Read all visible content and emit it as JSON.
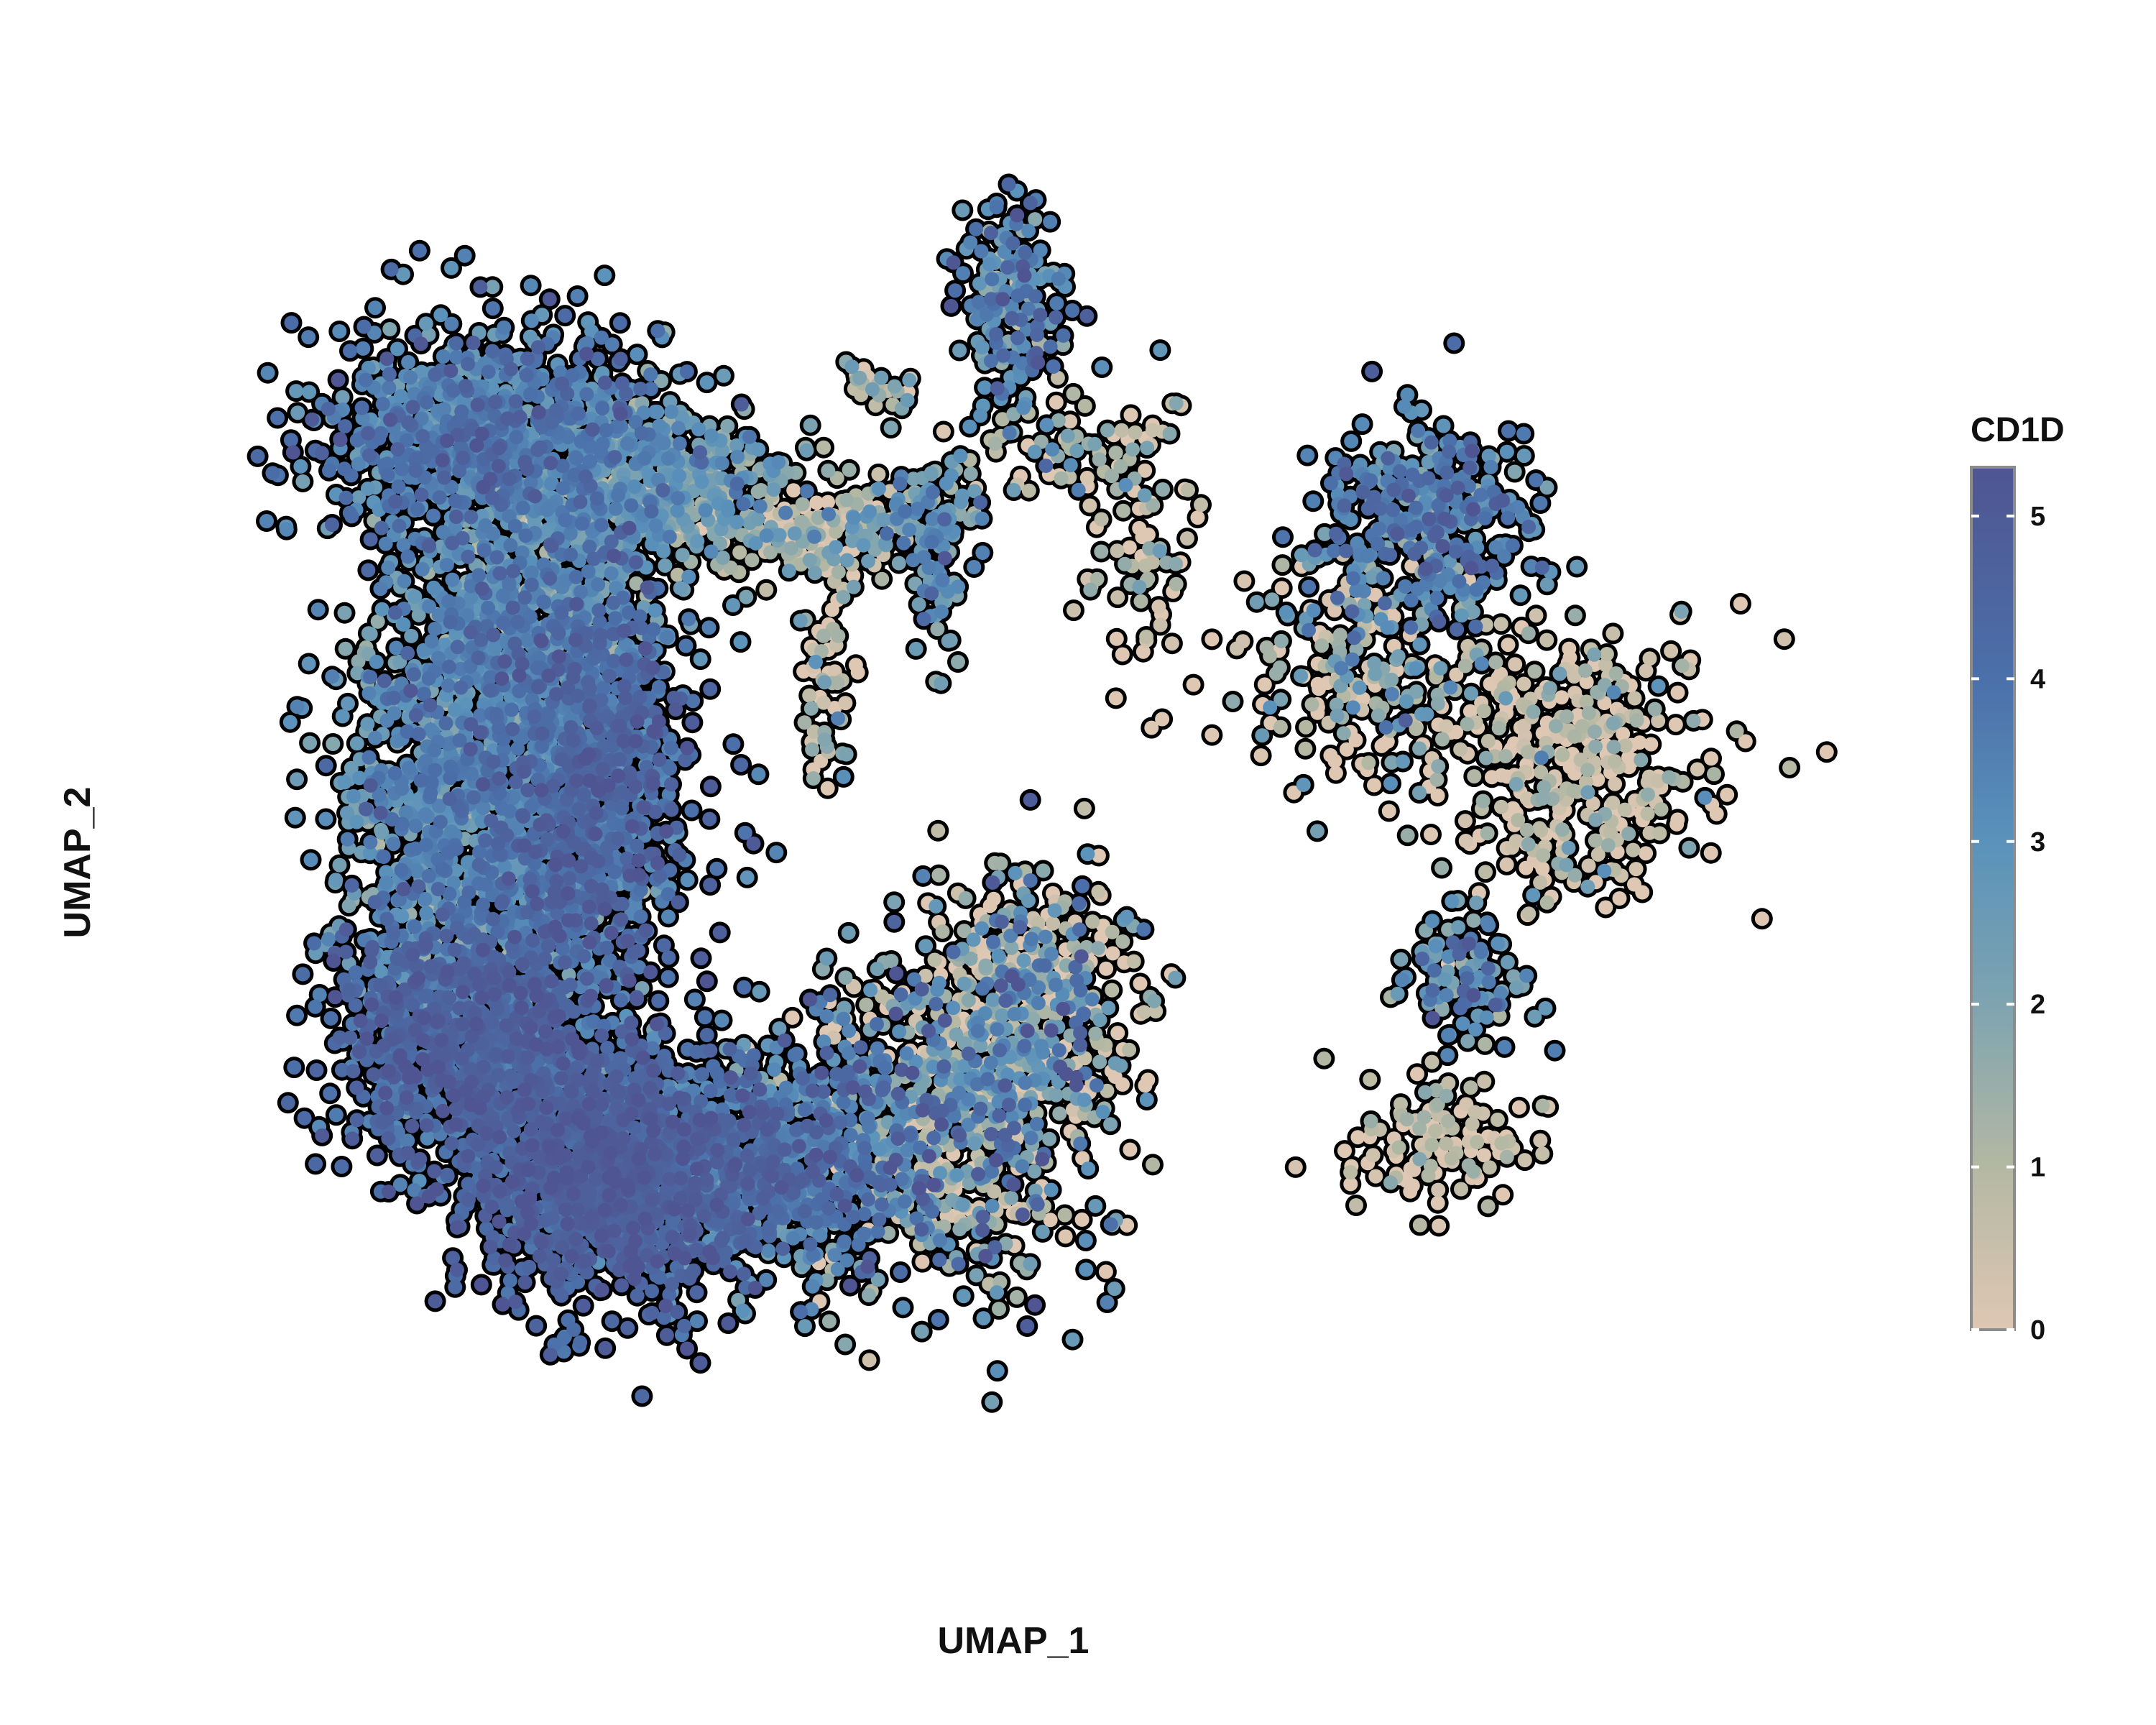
{
  "chart_data": {
    "type": "scatter",
    "title": "",
    "xlabel": "UMAP_1",
    "ylabel": "UMAP_2",
    "xlim": [
      -10.5,
      15.5
    ],
    "ylim": [
      -10.8,
      10.0
    ],
    "grid": false,
    "point_fill_low": "#dec7b3",
    "point_outline": "#000000",
    "colorscale": {
      "title": "CD1D",
      "min": 0,
      "max": 5.3,
      "ticks": [
        0,
        1,
        2,
        3,
        4,
        5
      ],
      "tick_labels": [
        "0",
        "1",
        "2",
        "3",
        "4",
        "5"
      ],
      "stops": [
        {
          "value": 0,
          "color": "#dec7b3"
        },
        {
          "value": 1,
          "color": "#b4b8a3"
        },
        {
          "value": 2,
          "color": "#7ea4b0"
        },
        {
          "value": 3,
          "color": "#5a92bb"
        },
        {
          "value": 4,
          "color": "#4b70aa"
        },
        {
          "value": 5.3,
          "color": "#4f5592"
        }
      ]
    },
    "clusters": [
      {
        "x": -6.2,
        "y": 6.2,
        "sd": [
          1.4,
          0.9
        ],
        "n": 900,
        "expr_mean": 3.4,
        "expr_sd": 0.8
      },
      {
        "x": -3.6,
        "y": 5.3,
        "sd": [
          1.3,
          0.7
        ],
        "n": 500,
        "expr_mean": 2.2,
        "expr_sd": 0.9
      },
      {
        "x": -5.5,
        "y": 3.3,
        "sd": [
          1.1,
          1.0
        ],
        "n": 600,
        "expr_mean": 2.8,
        "expr_sd": 0.8
      },
      {
        "x": -6.8,
        "y": 0.2,
        "sd": [
          1.0,
          1.7
        ],
        "n": 1000,
        "expr_mean": 3.0,
        "expr_sd": 0.8
      },
      {
        "x": -4.6,
        "y": 0.5,
        "sd": [
          0.9,
          1.6
        ],
        "n": 900,
        "expr_mean": 4.0,
        "expr_sd": 0.7
      },
      {
        "x": -6.6,
        "y": -3.4,
        "sd": [
          1.1,
          1.0
        ],
        "n": 900,
        "expr_mean": 4.2,
        "expr_sd": 0.6
      },
      {
        "x": -4.5,
        "y": -5.6,
        "sd": [
          1.2,
          1.0
        ],
        "n": 1100,
        "expr_mean": 4.5,
        "expr_sd": 0.5
      },
      {
        "x": -1.8,
        "y": -5.4,
        "sd": [
          1.4,
          0.9
        ],
        "n": 800,
        "expr_mean": 3.6,
        "expr_sd": 0.8
      },
      {
        "x": 1.4,
        "y": -4.8,
        "sd": [
          1.3,
          1.4
        ],
        "n": 700,
        "expr_mean": 1.8,
        "expr_sd": 1.8
      },
      {
        "x": 2.8,
        "y": -2.9,
        "sd": [
          0.9,
          1.0
        ],
        "n": 400,
        "expr_mean": 1.4,
        "expr_sd": 1.8
      },
      {
        "x": -0.6,
        "y": 4.6,
        "sd": [
          0.8,
          0.3
        ],
        "n": 140,
        "expr_mean": 0.9,
        "expr_sd": 1.3
      },
      {
        "x": 1.0,
        "y": 4.9,
        "sd": [
          0.5,
          0.3
        ],
        "n": 80,
        "expr_mean": 2.4,
        "expr_sd": 1.0
      },
      {
        "x": 1.3,
        "y": 4.0,
        "sd": [
          0.2,
          0.7
        ],
        "n": 60,
        "expr_mean": 2.8,
        "expr_sd": 0.8
      },
      {
        "x": -0.6,
        "y": 2.5,
        "sd": [
          0.25,
          1.1
        ],
        "n": 70,
        "expr_mean": 0.7,
        "expr_sd": 1.2
      },
      {
        "x": 0.2,
        "y": 7.0,
        "sd": [
          0.25,
          0.2
        ],
        "n": 30,
        "expr_mean": 1.0,
        "expr_sd": 1.2
      },
      {
        "x": 2.6,
        "y": 8.3,
        "sd": [
          0.45,
          0.75
        ],
        "n": 170,
        "expr_mean": 3.1,
        "expr_sd": 1.0
      },
      {
        "x": 3.2,
        "y": 6.0,
        "sd": [
          0.9,
          0.4
        ],
        "n": 60,
        "expr_mean": 1.0,
        "expr_sd": 1.3
      },
      {
        "x": 4.6,
        "y": 4.4,
        "sd": [
          0.5,
          1.3
        ],
        "n": 80,
        "expr_mean": 0.6,
        "expr_sd": 1.1
      },
      {
        "x": 9.5,
        "y": 4.8,
        "sd": [
          0.9,
          0.75
        ],
        "n": 360,
        "expr_mean": 3.3,
        "expr_sd": 0.9
      },
      {
        "x": 8.4,
        "y": 2.4,
        "sd": [
          1.0,
          0.9
        ],
        "n": 200,
        "expr_mean": 0.8,
        "expr_sd": 1.4
      },
      {
        "x": 11.9,
        "y": 0.8,
        "sd": [
          1.2,
          1.1
        ],
        "n": 380,
        "expr_mean": 0.4,
        "expr_sd": 1.0
      },
      {
        "x": 10.2,
        "y": -2.5,
        "sd": [
          0.5,
          0.55
        ],
        "n": 110,
        "expr_mean": 2.8,
        "expr_sd": 1.0
      },
      {
        "x": 9.7,
        "y": -5.1,
        "sd": [
          0.8,
          0.5
        ],
        "n": 120,
        "expr_mean": 0.3,
        "expr_sd": 0.8
      }
    ]
  }
}
